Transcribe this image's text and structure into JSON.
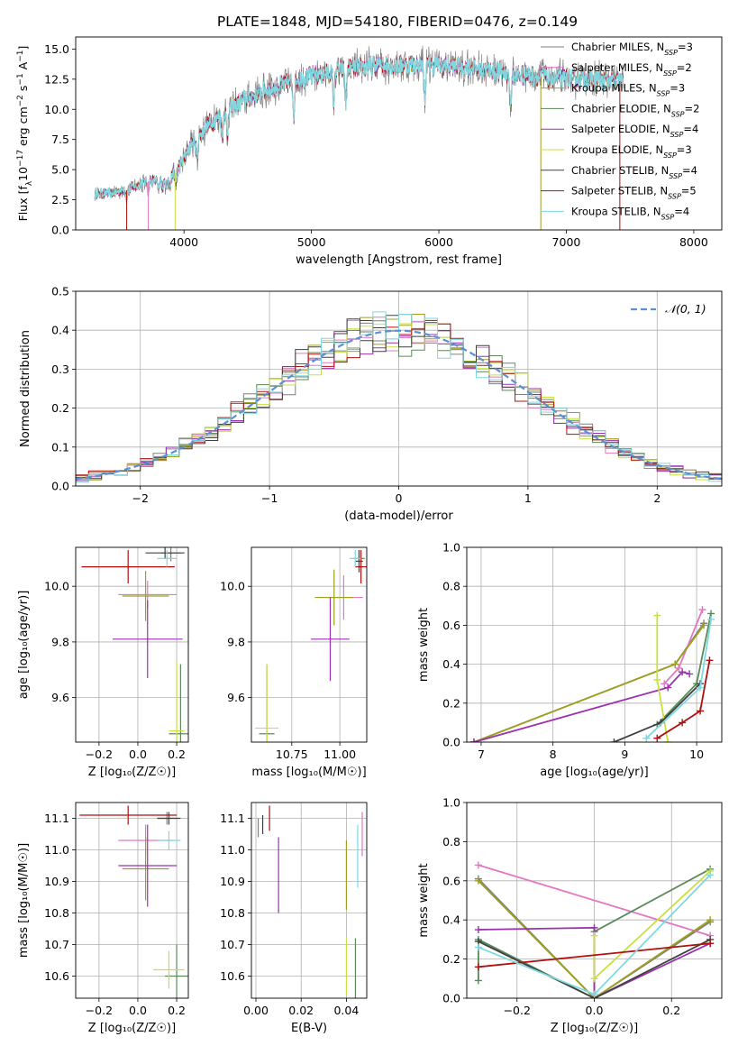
{
  "figure": {
    "title": "PLATE=1848, MJD=54180, FIBERID=0476, z=0.149"
  },
  "model_colors": [
    "#7f7f7f",
    "#e377c2",
    "#a0a020",
    "#5a8a5a",
    "#9b30b0",
    "#c8e040",
    "#404040",
    "#b01010",
    "#7fd8e0"
  ],
  "chart_data": [
    {
      "id": "spectrum",
      "type": "line",
      "xlabel": "wavelength [Angstrom, rest frame]",
      "ylabel": "Flux [f$_\\lambda$10$^{-17}$ erg cm$^{-2}$ s$^{-1}$ A$^{-1}$]",
      "ylabel_parts": {
        "pre": "Flux [f",
        "sub1": "λ",
        "mid": "10",
        "sup1": "−17",
        "mid2": " erg cm",
        "sup2": "−2",
        "mid3": " s",
        "sup3": "−1",
        "mid4": " A",
        "sup4": "−1",
        "post": "]"
      },
      "xlim": [
        3150,
        8220
      ],
      "ylim": [
        0,
        16
      ],
      "xticks": [
        4000,
        5000,
        6000,
        7000,
        8000
      ],
      "yticks": [
        0.0,
        2.5,
        5.0,
        7.5,
        10.0,
        12.5,
        15.0
      ],
      "ytick_labels": [
        "0.0",
        "2.5",
        "5.0",
        "7.5",
        "10.0",
        "12.5",
        "15.0"
      ],
      "grid": false,
      "legend_position": "top-right",
      "legend": [
        {
          "name": "Chabrier MILES",
          "nssp": "3"
        },
        {
          "name": "Salpeter MILES",
          "nssp": "2"
        },
        {
          "name": "Kroupa MILES",
          "nssp": "3"
        },
        {
          "name": "Chabrier ELODIE",
          "nssp": "2"
        },
        {
          "name": "Salpeter ELODIE",
          "nssp": "4"
        },
        {
          "name": "Kroupa ELODIE",
          "nssp": "3"
        },
        {
          "name": "Chabrier STELIB",
          "nssp": "4"
        },
        {
          "name": "Salpeter STELIB",
          "nssp": "5"
        },
        {
          "name": "Kroupa STELIB",
          "nssp": "4"
        }
      ],
      "nssp_label": "N",
      "nssp_sub": "SSP",
      "continuum": {
        "x": [
          3300,
          3450,
          3550,
          3700,
          3850,
          3950,
          4050,
          4200,
          4350,
          4500,
          4700,
          4900,
          5100,
          5300,
          5500,
          5700,
          5900,
          6100,
          6300,
          6500,
          6700,
          6900,
          7100,
          7300,
          7500
        ],
        "y": [
          3.0,
          3.1,
          3.3,
          4.0,
          4.3,
          4.9,
          7.0,
          8.8,
          10.0,
          11.0,
          11.8,
          12.5,
          13.0,
          13.4,
          13.6,
          13.7,
          13.8,
          13.6,
          13.4,
          13.0,
          12.8,
          12.6,
          12.5,
          12.4,
          12.3
        ]
      },
      "dips": [
        3550,
        3720,
        3800,
        3830,
        3860,
        3890,
        3935,
        4102,
        4300,
        4340,
        4861,
        5175,
        5270,
        5890,
        6563
      ]
    },
    {
      "id": "residuals",
      "type": "histogram",
      "xlabel": "(data-model)/error",
      "ylabel": "Normed distribution",
      "xlim": [
        -2.5,
        2.5
      ],
      "ylim": [
        0,
        0.5
      ],
      "xticks": [
        -2,
        -1,
        0,
        1,
        2
      ],
      "xtick_labels": [
        "−2",
        "−1",
        "0",
        "1",
        "2"
      ],
      "yticks": [
        0.0,
        0.1,
        0.2,
        0.3,
        0.4,
        0.5
      ],
      "ytick_labels": [
        "0.0",
        "0.1",
        "0.2",
        "0.3",
        "0.4",
        "0.5"
      ],
      "grid": true,
      "legend_position": "top-right",
      "legend_label": "𝒩(0, 1)",
      "bin_width": 0.1
    },
    {
      "id": "age_vs_Z",
      "type": "errorbar",
      "xlabel": "Z [log₁₀(Z/Z☉)]",
      "ylabel": "age  [log₁₀(age/yr)]",
      "xlim": [
        -0.32,
        0.26
      ],
      "ylim": [
        9.44,
        10.14
      ],
      "xticks": [
        -0.2,
        0.0,
        0.2
      ],
      "xtick_labels": [
        "−0.2",
        "0.0",
        "0.2"
      ],
      "yticks": [
        9.6,
        9.8,
        10.0
      ],
      "ytick_labels": [
        "9.6",
        "9.8",
        "10.0"
      ],
      "grid": true,
      "points": [
        {
          "x": 0.17,
          "y": 10.12,
          "xerr": 0.05,
          "yerr": 0.03,
          "c": 0
        },
        {
          "x": 0.05,
          "y": 9.97,
          "xerr": 0.15,
          "yerr": 0.05,
          "c": 1
        },
        {
          "x": 0.04,
          "y": 9.965,
          "xerr": 0.12,
          "yerr": 0.09,
          "c": 2
        },
        {
          "x": 0.22,
          "y": 9.47,
          "xerr": 0.06,
          "yerr": 0.25,
          "c": 3
        },
        {
          "x": 0.05,
          "y": 9.81,
          "xerr": 0.18,
          "yerr": 0.14,
          "c": 4
        },
        {
          "x": 0.2,
          "y": 9.48,
          "xerr": 0.04,
          "yerr": 0.25,
          "c": 5
        },
        {
          "x": 0.14,
          "y": 10.12,
          "xerr": 0.1,
          "yerr": 0.02,
          "c": 6
        },
        {
          "x": -0.05,
          "y": 10.07,
          "xerr": 0.24,
          "yerr": 0.06,
          "c": 7
        },
        {
          "x": 0.15,
          "y": 10.1,
          "xerr": 0.05,
          "yerr": 0.03,
          "c": 8
        }
      ]
    },
    {
      "id": "age_vs_mass",
      "type": "errorbar",
      "xlabel": "mass [log₁₀(M/M☉)]",
      "ylabel": "",
      "xlim": [
        10.54,
        11.14
      ],
      "ylim": [
        9.44,
        10.14
      ],
      "xticks": [
        10.75,
        11.0
      ],
      "xtick_labels": [
        "10.75",
        "11.00"
      ],
      "yticks": [
        9.6,
        9.8,
        10.0
      ],
      "ytick_labels": [
        "9.6",
        "9.8",
        "10.0"
      ],
      "grid": true,
      "points": [
        {
          "x": 11.1,
          "y": 10.1,
          "xerr": 0.03,
          "yerr": 0.03,
          "c": 0
        },
        {
          "x": 11.02,
          "y": 9.96,
          "xerr": 0.1,
          "yerr": 0.08,
          "c": 1
        },
        {
          "x": 10.97,
          "y": 9.96,
          "xerr": 0.1,
          "yerr": 0.1,
          "c": 2
        },
        {
          "x": 10.62,
          "y": 9.47,
          "xerr": 0.04,
          "yerr": 0.25,
          "c": 3
        },
        {
          "x": 10.95,
          "y": 9.81,
          "xerr": 0.1,
          "yerr": 0.15,
          "c": 4
        },
        {
          "x": 10.62,
          "y": 9.49,
          "xerr": 0.06,
          "yerr": 0.23,
          "c": 5
        },
        {
          "x": 11.1,
          "y": 10.09,
          "xerr": 0.02,
          "yerr": 0.04,
          "c": 6
        },
        {
          "x": 11.11,
          "y": 10.07,
          "xerr": 0.03,
          "yerr": 0.06,
          "c": 7
        },
        {
          "x": 11.08,
          "y": 10.1,
          "xerr": 0.03,
          "yerr": 0.03,
          "c": 8
        }
      ]
    },
    {
      "id": "weight_vs_age",
      "type": "line",
      "xlabel": "age  [log₁₀(age/yr)]",
      "ylabel": "mass weight",
      "xlim": [
        6.8,
        10.35
      ],
      "ylim": [
        0,
        1.0
      ],
      "xticks": [
        7,
        8,
        9,
        10
      ],
      "xtick_labels": [
        "7",
        "8",
        "9",
        "10"
      ],
      "yticks": [
        0.0,
        0.2,
        0.4,
        0.6,
        0.8,
        1.0
      ],
      "ytick_labels": [
        "0.0",
        "0.2",
        "0.4",
        "0.6",
        "0.8",
        "1.0"
      ],
      "grid": true,
      "series": [
        {
          "c": 0,
          "x": [
            6.9,
            9.7,
            10.1
          ],
          "y": [
            0.0,
            0.4,
            0.61
          ]
        },
        {
          "c": 1,
          "x": [
            9.55,
            9.75,
            10.08
          ],
          "y": [
            0.3,
            0.38,
            0.68
          ]
        },
        {
          "c": 2,
          "x": [
            6.9,
            9.7,
            10.1
          ],
          "y": [
            0.0,
            0.4,
            0.6
          ]
        },
        {
          "c": 3,
          "x": [
            9.45,
            10.0,
            10.2
          ],
          "y": [
            0.09,
            0.3,
            0.66
          ]
        },
        {
          "c": 4,
          "x": [
            6.9,
            9.6,
            9.8,
            9.9
          ],
          "y": [
            0.0,
            0.28,
            0.36,
            0.35
          ]
        },
        {
          "c": 5,
          "x": [
            9.45,
            9.45,
            9.6
          ],
          "y": [
            0.65,
            0.32,
            0.0
          ]
        },
        {
          "c": 6,
          "x": [
            8.85,
            9.5,
            10.05
          ],
          "y": [
            0.0,
            0.1,
            0.3
          ]
        },
        {
          "c": 7,
          "x": [
            9.45,
            9.8,
            10.05,
            10.18
          ],
          "y": [
            0.02,
            0.1,
            0.16,
            0.42
          ]
        },
        {
          "c": 8,
          "x": [
            9.3,
            10.05,
            10.2
          ],
          "y": [
            0.02,
            0.28,
            0.63
          ]
        }
      ]
    },
    {
      "id": "mass_vs_Z",
      "type": "errorbar",
      "xlabel": "Z [log₁₀(Z/Z☉)]",
      "ylabel": "mass [log₁₀(M/M☉)]",
      "xlim": [
        -0.32,
        0.26
      ],
      "ylim": [
        10.53,
        11.15
      ],
      "xticks": [
        -0.2,
        0.0,
        0.2
      ],
      "xtick_labels": [
        "−0.2",
        "0.0",
        "0.2"
      ],
      "yticks": [
        10.6,
        10.7,
        10.8,
        10.9,
        11.0,
        11.1
      ],
      "ytick_labels": [
        "10.6",
        "10.7",
        "10.8",
        "10.9",
        "11.0",
        "11.1"
      ],
      "grid": true,
      "points": [
        {
          "x": 0.15,
          "y": 11.1,
          "xerr": 0.05,
          "yerr": 0.02,
          "c": 0
        },
        {
          "x": 0.04,
          "y": 11.03,
          "xerr": 0.14,
          "yerr": 0.05,
          "c": 1
        },
        {
          "x": 0.04,
          "y": 10.94,
          "xerr": 0.12,
          "yerr": 0.1,
          "c": 2
        },
        {
          "x": 0.2,
          "y": 10.6,
          "xerr": 0.06,
          "yerr": 0.1,
          "c": 3
        },
        {
          "x": 0.05,
          "y": 10.95,
          "xerr": 0.15,
          "yerr": 0.13,
          "c": 4
        },
        {
          "x": 0.16,
          "y": 10.62,
          "xerr": 0.08,
          "yerr": 0.06,
          "c": 5
        },
        {
          "x": 0.16,
          "y": 11.1,
          "xerr": 0.06,
          "yerr": 0.02,
          "c": 6
        },
        {
          "x": -0.05,
          "y": 11.11,
          "xerr": 0.25,
          "yerr": 0.03,
          "c": 7
        },
        {
          "x": 0.16,
          "y": 11.03,
          "xerr": 0.06,
          "yerr": 0.03,
          "c": 8
        }
      ]
    },
    {
      "id": "mass_vs_EBV",
      "type": "errorbar",
      "xlabel": "E(B-V)",
      "ylabel": "",
      "xlim": [
        -0.002,
        0.049
      ],
      "ylim": [
        10.53,
        11.15
      ],
      "xticks": [
        0.0,
        0.02,
        0.04
      ],
      "xtick_labels": [
        "0.00",
        "0.02",
        "0.04"
      ],
      "yticks": [
        10.6,
        10.7,
        10.8,
        10.9,
        11.0,
        11.1
      ],
      "ytick_labels": [
        "10.6",
        "10.7",
        "10.8",
        "10.9",
        "11.0",
        "11.1"
      ],
      "grid": true,
      "points": [
        {
          "x": 0.001,
          "y": 11.07,
          "xerr": 0,
          "yerr": 0.03,
          "c": 0
        },
        {
          "x": 0.047,
          "y": 11.05,
          "xerr": 0,
          "yerr": 0.07,
          "c": 1
        },
        {
          "x": 0.04,
          "y": 10.92,
          "xerr": 0,
          "yerr": 0.11,
          "c": 2
        },
        {
          "x": 0.044,
          "y": 10.62,
          "xerr": 0,
          "yerr": 0.1,
          "c": 3
        },
        {
          "x": 0.01,
          "y": 10.92,
          "xerr": 0,
          "yerr": 0.12,
          "c": 4
        },
        {
          "x": 0.04,
          "y": 10.63,
          "xerr": 0,
          "yerr": 0.09,
          "c": 5
        },
        {
          "x": 0.003,
          "y": 11.08,
          "xerr": 0,
          "yerr": 0.03,
          "c": 6
        },
        {
          "x": 0.006,
          "y": 11.1,
          "xerr": 0,
          "yerr": 0.04,
          "c": 7
        },
        {
          "x": 0.045,
          "y": 10.98,
          "xerr": 0,
          "yerr": 0.1,
          "c": 8
        }
      ]
    },
    {
      "id": "weight_vs_Z",
      "type": "line",
      "xlabel": "Z [log₁₀(Z/Z☉)]",
      "ylabel": "mass weight",
      "xlim": [
        -0.33,
        0.33
      ],
      "ylim": [
        0,
        1.0
      ],
      "xticks": [
        -0.2,
        0.0,
        0.2
      ],
      "xtick_labels": [
        "−0.2",
        "0.0",
        "0.2"
      ],
      "yticks": [
        0.0,
        0.2,
        0.4,
        0.6,
        0.8,
        1.0
      ],
      "ytick_labels": [
        "0.0",
        "0.2",
        "0.4",
        "0.6",
        "0.8",
        "1.0"
      ],
      "grid": true,
      "series": [
        {
          "c": 0,
          "x": [
            -0.3,
            0.0,
            0.3
          ],
          "y": [
            0.61,
            0.0,
            0.39
          ]
        },
        {
          "c": 1,
          "x": [
            -0.3,
            0.3
          ],
          "y": [
            0.68,
            0.32
          ]
        },
        {
          "c": 2,
          "x": [
            -0.3,
            0.0,
            0.3
          ],
          "y": [
            0.6,
            0.0,
            0.4
          ]
        },
        {
          "c": 3,
          "x": [
            -0.3,
            -0.3,
            0.0,
            0.0,
            0.3
          ],
          "y": [
            0.09,
            0.3,
            0.0,
            0.34,
            0.66
          ]
        },
        {
          "c": 4,
          "x": [
            -0.3,
            0.0,
            0.0,
            0.3
          ],
          "y": [
            0.35,
            0.36,
            0.0,
            0.28
          ]
        },
        {
          "c": 5,
          "x": [
            0.0,
            0.0,
            0.3
          ],
          "y": [
            0.32,
            0.1,
            0.65
          ]
        },
        {
          "c": 6,
          "x": [
            -0.3,
            0.0,
            0.3
          ],
          "y": [
            0.29,
            0.0,
            0.3
          ]
        },
        {
          "c": 7,
          "x": [
            -0.3,
            0.3
          ],
          "y": [
            0.16,
            0.28
          ]
        },
        {
          "c": 8,
          "x": [
            -0.3,
            0.0,
            0.3
          ],
          "y": [
            0.26,
            0.02,
            0.63
          ]
        }
      ]
    }
  ]
}
